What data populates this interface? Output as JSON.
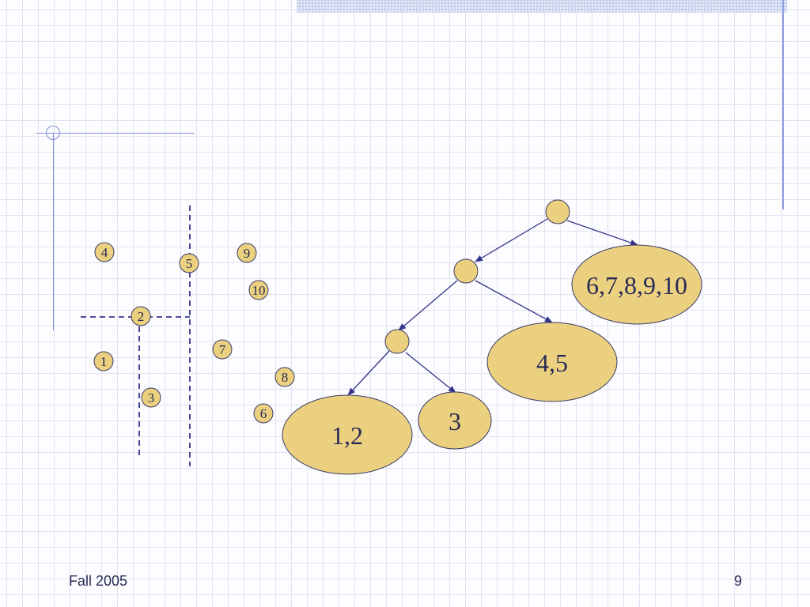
{
  "points": [
    "1",
    "2",
    "3",
    "4",
    "5",
    "6",
    "7",
    "8",
    "9",
    "10"
  ],
  "tree": {
    "leaves": [
      "1,2",
      "3",
      "4,5",
      "6,7,8,9,10"
    ]
  },
  "colors": {
    "node_fill": "#ebd17f",
    "node_stroke": "#3a3a6a",
    "edge": "#33338a",
    "split_line": "#33338a"
  },
  "footer": {
    "left": "Fall 2005",
    "right": "9"
  }
}
